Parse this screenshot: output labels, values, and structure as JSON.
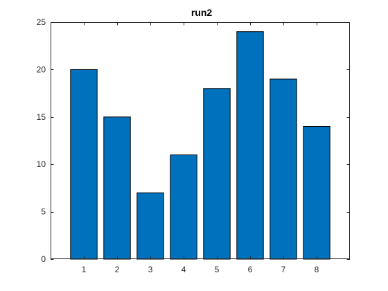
{
  "chart_data": {
    "type": "bar",
    "title": "run2",
    "xlabel": "",
    "ylabel": "",
    "categories": [
      "1",
      "2",
      "3",
      "4",
      "5",
      "6",
      "7",
      "8"
    ],
    "values": [
      20,
      15,
      7,
      11,
      18,
      24,
      19,
      14
    ],
    "xlim": [
      0,
      9
    ],
    "ylim": [
      0,
      25
    ],
    "yticks": [
      0,
      5,
      10,
      15,
      20,
      25
    ],
    "grid": false,
    "legend": "none",
    "bar_color": "#0072BD",
    "edge_color": "#000000",
    "axis_color": "#262626"
  }
}
